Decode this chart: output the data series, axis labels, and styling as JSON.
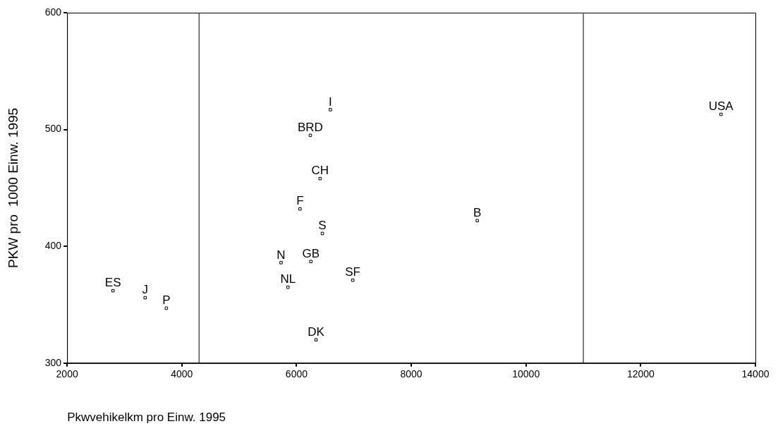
{
  "chart_data": {
    "type": "scatter",
    "xlabel": "Pkwvehikelkm pro Einw. 1995",
    "ylabel": "PKW pro  1000 Einw. 1995",
    "series": [
      {
        "color": "#000000",
        "x": [
          2800,
          3360,
          3730,
          5730,
          5850,
          6250,
          6060,
          6240,
          6590,
          6410,
          6450,
          6340,
          6980,
          9150,
          13400
        ],
        "values": [
          362,
          356,
          347,
          386,
          365,
          387,
          432,
          495,
          517,
          458,
          411,
          320,
          371,
          422,
          513
        ]
      }
    ],
    "annotations": [
      {
        "text": "ES",
        "x": 2800,
        "y": 362
      },
      {
        "text": "J",
        "x": 3360,
        "y": 356
      },
      {
        "text": "P",
        "x": 3730,
        "y": 347
      },
      {
        "text": "N",
        "x": 5730,
        "y": 386
      },
      {
        "text": "NL",
        "x": 5850,
        "y": 365
      },
      {
        "text": "GB",
        "x": 6250,
        "y": 387
      },
      {
        "text": "F",
        "x": 6060,
        "y": 432
      },
      {
        "text": "BRD",
        "x": 6240,
        "y": 495
      },
      {
        "text": "I",
        "x": 6590,
        "y": 517
      },
      {
        "text": "CH",
        "x": 6410,
        "y": 458
      },
      {
        "text": "S",
        "x": 6450,
        "y": 411
      },
      {
        "text": "DK",
        "x": 6340,
        "y": 320
      },
      {
        "text": "SF",
        "x": 6980,
        "y": 371
      },
      {
        "text": "B",
        "x": 9150,
        "y": 422
      },
      {
        "text": "USA",
        "x": 13400,
        "y": 513
      }
    ],
    "ref_lines": [
      {
        "axis": "x",
        "value": 4300,
        "color": "#000000"
      },
      {
        "axis": "x",
        "value": 11000,
        "color": "#000000"
      }
    ],
    "xlim": [
      2000,
      14000
    ],
    "xticks": [
      2000,
      4000,
      6000,
      8000,
      10000,
      12000,
      14000
    ],
    "ylim": [
      300,
      600
    ],
    "yticks": [
      300,
      400,
      500,
      600
    ],
    "grid": false,
    "legend": false,
    "marker": "square"
  }
}
